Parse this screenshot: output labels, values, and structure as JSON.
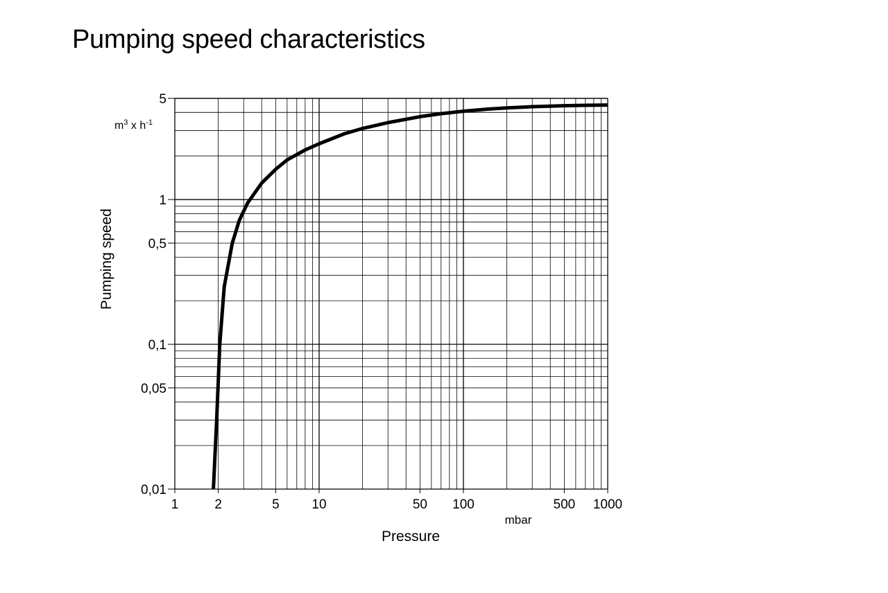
{
  "chart_data": {
    "type": "line",
    "title": "Pumping speed characteristics",
    "xlabel": "Pressure",
    "xunit": "mbar",
    "ylabel": "Pumping speed",
    "yunit": {
      "base1": "m",
      "sup1": "3",
      "mid": " x h",
      "sup2": "-1"
    },
    "xscale": "log",
    "yscale": "log",
    "xlim": [
      1,
      1000
    ],
    "ylim": [
      0.01,
      5
    ],
    "grid": true,
    "x_ticks": [
      {
        "value": 1,
        "label": "1"
      },
      {
        "value": 2,
        "label": "2"
      },
      {
        "value": 5,
        "label": "5"
      },
      {
        "value": 10,
        "label": "10"
      },
      {
        "value": 50,
        "label": "50"
      },
      {
        "value": 100,
        "label": "100"
      },
      {
        "value": 500,
        "label": "500"
      },
      {
        "value": 1000,
        "label": "1000"
      }
    ],
    "y_ticks": [
      {
        "value": 0.01,
        "label": "0,01"
      },
      {
        "value": 0.05,
        "label": "0,05"
      },
      {
        "value": 0.1,
        "label": "0,1"
      },
      {
        "value": 0.5,
        "label": "0,5"
      },
      {
        "value": 1,
        "label": "1"
      },
      {
        "value": 5,
        "label": "5"
      }
    ],
    "series": [
      {
        "color": "#000000",
        "x": [
          1.85,
          1.95,
          2.05,
          2.2,
          2.5,
          2.8,
          3.2,
          4,
          5,
          6,
          8,
          10,
          15,
          20,
          30,
          50,
          70,
          100,
          150,
          200,
          300,
          500,
          700,
          1000
        ],
        "y": [
          0.01,
          0.03,
          0.1,
          0.25,
          0.5,
          0.72,
          0.95,
          1.3,
          1.62,
          1.88,
          2.2,
          2.43,
          2.85,
          3.1,
          3.4,
          3.74,
          3.92,
          4.08,
          4.22,
          4.3,
          4.38,
          4.45,
          4.48,
          4.5
        ]
      }
    ]
  }
}
